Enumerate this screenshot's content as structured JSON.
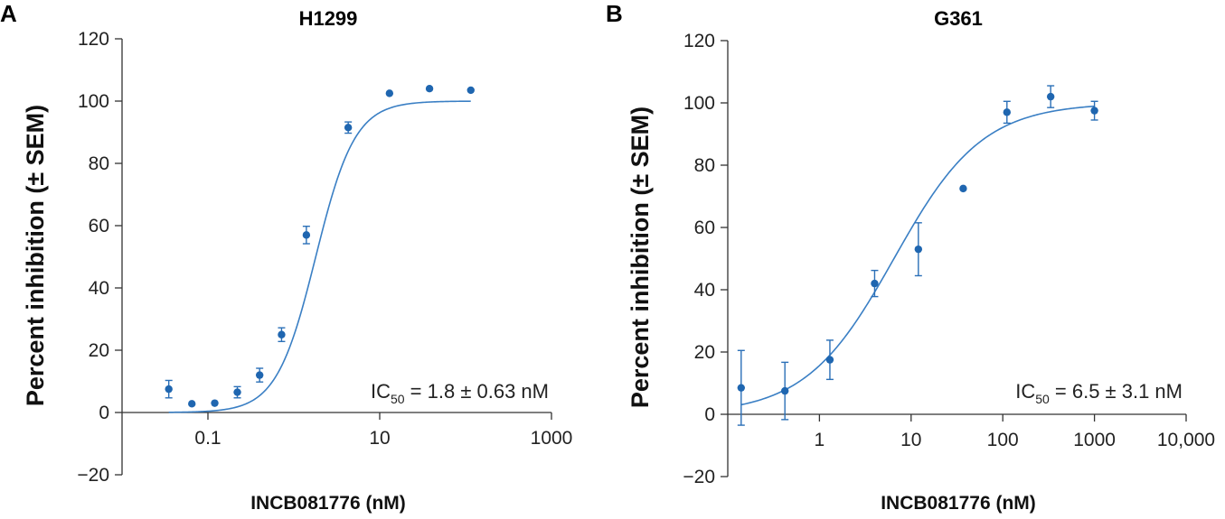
{
  "chart_data": [
    {
      "panel_label": "A",
      "type": "scatter",
      "title": "H1299",
      "xlabel": "INCB081776 (nM)",
      "ylabel": "Percent inhibition (± SEM)",
      "xscale": "log",
      "xlim": [
        0.01,
        1000
      ],
      "ylim": [
        -20,
        120
      ],
      "xticks": [
        0.1,
        10,
        1000
      ],
      "xtick_labels": [
        "0.1",
        "10",
        "1000"
      ],
      "yticks": [
        -20,
        0,
        20,
        40,
        60,
        80,
        100,
        120
      ],
      "ytick_labels": [
        "−20",
        "0",
        "20",
        "40",
        "60",
        "80",
        "100",
        "120"
      ],
      "points": [
        {
          "x": 0.035,
          "y": 7.5,
          "err": 2.8
        },
        {
          "x": 0.065,
          "y": 2.8,
          "err": 0
        },
        {
          "x": 0.12,
          "y": 3.0,
          "err": 0
        },
        {
          "x": 0.22,
          "y": 6.5,
          "err": 1.8
        },
        {
          "x": 0.4,
          "y": 12.0,
          "err": 2.2
        },
        {
          "x": 0.72,
          "y": 25.0,
          "err": 2.2
        },
        {
          "x": 1.4,
          "y": 57.0,
          "err": 2.8
        },
        {
          "x": 4.3,
          "y": 91.5,
          "err": 1.8
        },
        {
          "x": 13.0,
          "y": 102.5,
          "err": 0
        },
        {
          "x": 38.0,
          "y": 104.0,
          "err": 0
        },
        {
          "x": 115.0,
          "y": 103.5,
          "err": 0
        }
      ],
      "fit": {
        "ic50": 1.8,
        "hill": 1.9,
        "bottom": 0,
        "top": 100,
        "x_range": [
          0.035,
          115
        ]
      },
      "annotation": {
        "prefix": "IC",
        "subscript": "50",
        "suffix": " = 1.8 ± 0.63 nM"
      }
    },
    {
      "panel_label": "B",
      "type": "scatter",
      "title": "G361",
      "xlabel": "INCB081776 (nM)",
      "ylabel": "Percent inhibition (± SEM)",
      "xscale": "log",
      "xlim": [
        0.1,
        10000
      ],
      "ylim": [
        -20,
        120
      ],
      "xticks": [
        1,
        10,
        100,
        1000,
        10000
      ],
      "xtick_labels": [
        "1",
        "10",
        "100",
        "1000",
        "10,000"
      ],
      "yticks": [
        -20,
        0,
        20,
        40,
        60,
        80,
        100,
        120
      ],
      "ytick_labels": [
        "−20",
        "0",
        "20",
        "40",
        "60",
        "80",
        "100",
        "120"
      ],
      "points": [
        {
          "x": 0.14,
          "y": 8.5,
          "err": 12.0
        },
        {
          "x": 0.42,
          "y": 7.5,
          "err": 9.2
        },
        {
          "x": 1.3,
          "y": 17.5,
          "err": 6.3
        },
        {
          "x": 4.0,
          "y": 42.0,
          "err": 4.2
        },
        {
          "x": 12.0,
          "y": 53.0,
          "err": 8.5
        },
        {
          "x": 37.0,
          "y": 72.5,
          "err": 0
        },
        {
          "x": 111.0,
          "y": 97.0,
          "err": 3.5
        },
        {
          "x": 333.0,
          "y": 102.0,
          "err": 3.5
        },
        {
          "x": 1000.0,
          "y": 97.5,
          "err": 3.0
        }
      ],
      "fit": {
        "ic50": 6.5,
        "hill": 0.9,
        "bottom": 0,
        "top": 100,
        "x_range": [
          0.14,
          1000
        ]
      },
      "annotation": {
        "prefix": "IC",
        "subscript": "50",
        "suffix": " = 6.5 ± 3.1 nM"
      }
    }
  ]
}
